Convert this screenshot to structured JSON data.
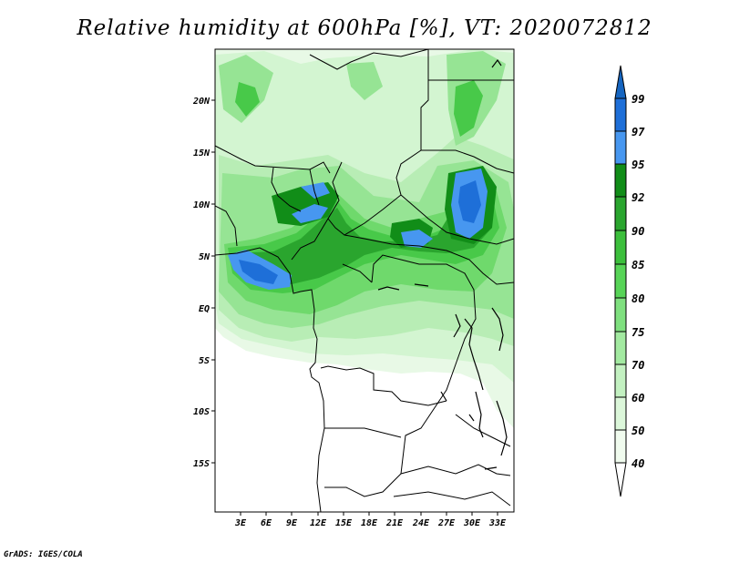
{
  "title": "Relative humidity at 600hPa [%], VT: 2020072812",
  "credit": "GrADS: IGES/COLA",
  "lat_labels": [
    "20N",
    "15N",
    "10N",
    "5N",
    "EQ",
    "5S",
    "10S",
    "15S"
  ],
  "lon_labels": [
    "3E",
    "6E",
    "9E",
    "12E",
    "15E",
    "18E",
    "21E",
    "24E",
    "27E",
    "30E",
    "33E"
  ],
  "colorbar": {
    "levels": [
      "99",
      "97",
      "95",
      "92",
      "90",
      "85",
      "80",
      "75",
      "70",
      "60",
      "50",
      "40"
    ],
    "colors": [
      "#1565c0",
      "#1e6fd8",
      "#4797f0",
      "#118d18",
      "#2aa52e",
      "#3cbf3c",
      "#57d457",
      "#7fe07f",
      "#a3eaa1",
      "#c3f1c1",
      "#dcf7da",
      "#f0fbee"
    ]
  }
}
